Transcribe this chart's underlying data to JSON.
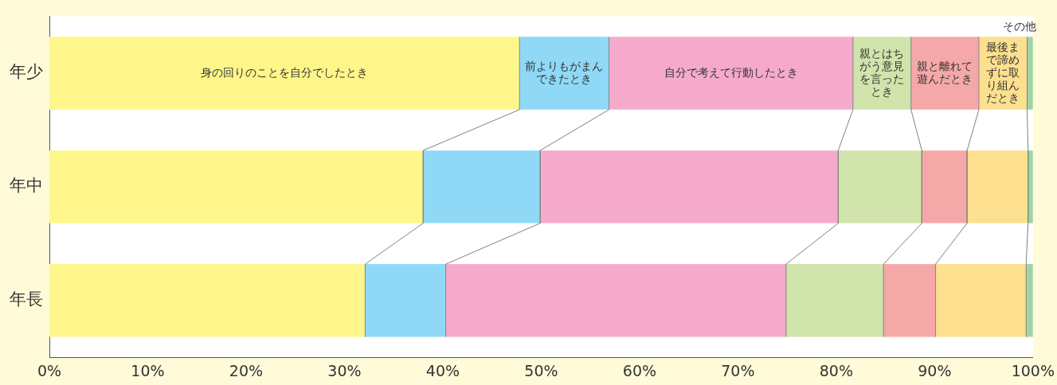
{
  "chart_data": {
    "type": "bar",
    "orientation": "horizontal",
    "stacked": true,
    "legend": false,
    "grid": false,
    "categories": [
      "年少",
      "年中",
      "年長"
    ],
    "xlim": [
      0,
      100
    ],
    "xticks": [
      {
        "value": 0,
        "label": "0%"
      },
      {
        "value": 10,
        "label": "10%"
      },
      {
        "value": 20,
        "label": "20%"
      },
      {
        "value": 30,
        "label": "30%"
      },
      {
        "value": 40,
        "label": "40%"
      },
      {
        "value": 50,
        "label": "50%"
      },
      {
        "value": 60,
        "label": "60%"
      },
      {
        "value": 70,
        "label": "70%"
      },
      {
        "value": 80,
        "label": "80%"
      },
      {
        "value": 90,
        "label": "90%"
      },
      {
        "value": 100,
        "label": "100%"
      }
    ],
    "series": [
      {
        "name": "身の回りのことを自分でしたとき",
        "color": "#fef68a",
        "values": [
          47.8,
          38.0,
          32.1
        ]
      },
      {
        "name": "前よりもがまんできたとき",
        "color": "#8fd9f6",
        "values": [
          9.1,
          11.9,
          8.2
        ]
      },
      {
        "name": "自分で考えて行動したとき",
        "color": "#f5aacc",
        "values": [
          24.8,
          30.3,
          34.6
        ]
      },
      {
        "name": "親とはちがう意見を言ったとき",
        "color": "#d1e4ac",
        "values": [
          5.9,
          8.5,
          9.9
        ]
      },
      {
        "name": "親と離れて遊んだとき",
        "color": "#f5a8a8",
        "values": [
          6.9,
          4.6,
          5.3
        ]
      },
      {
        "name": "最後まで諦めずに取り組んだとき",
        "color": "#fde08f",
        "values": [
          4.9,
          6.2,
          9.2
        ]
      },
      {
        "name": "その他",
        "color": "#9fd4a4",
        "values": [
          0.6,
          0.5,
          0.7
        ]
      }
    ]
  }
}
